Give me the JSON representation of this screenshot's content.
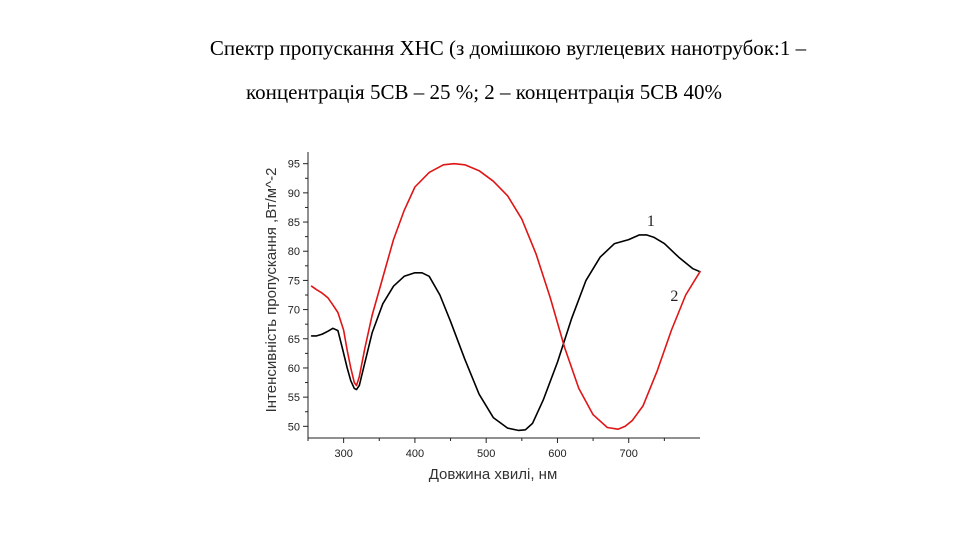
{
  "slide": {
    "title_line1": "Спектр пропускання ХНС (з домішкою вуглецевих нанотрубок:1 –",
    "title_line2": "концентрація 5СВ – 25 %; 2 – концентрація 5СВ 40%"
  },
  "chart_data": {
    "type": "line",
    "xlabel": "Довжина хвилі, нм",
    "ylabel": "Інтенсивність пропускання ,Вт/м^-2",
    "xlim": [
      250,
      800
    ],
    "ylim": [
      48,
      97
    ],
    "x_ticks": [
      300,
      400,
      500,
      600,
      700
    ],
    "y_ticks": [
      50,
      55,
      60,
      65,
      70,
      75,
      80,
      85,
      90,
      95
    ],
    "grid": false,
    "legend": "none",
    "series": [
      {
        "name": "1",
        "color": "#000000",
        "x": [
          255,
          262,
          270,
          278,
          285,
          292,
          298,
          305,
          310,
          315,
          318,
          322,
          330,
          340,
          355,
          370,
          385,
          400,
          410,
          420,
          435,
          450,
          470,
          490,
          510,
          530,
          545,
          555,
          565,
          580,
          600,
          620,
          640,
          660,
          680,
          700,
          715,
          725,
          735,
          750,
          770,
          790,
          800
        ],
        "y": [
          65.5,
          65.5,
          65.8,
          66.3,
          66.8,
          66.4,
          63.5,
          60.0,
          57.8,
          56.5,
          56.3,
          57.0,
          61.0,
          66.0,
          71.0,
          74.0,
          75.7,
          76.3,
          76.3,
          75.7,
          72.5,
          68.0,
          61.5,
          55.5,
          51.5,
          49.7,
          49.3,
          49.4,
          50.5,
          54.5,
          61.0,
          68.5,
          75.0,
          79.0,
          81.3,
          82.0,
          82.8,
          82.8,
          82.4,
          81.3,
          79.0,
          77.0,
          76.5
        ]
      },
      {
        "name": "2",
        "color": "#e01515",
        "x": [
          255,
          262,
          270,
          278,
          285,
          292,
          300,
          305,
          310,
          315,
          318,
          322,
          330,
          340,
          355,
          370,
          385,
          400,
          420,
          440,
          455,
          470,
          490,
          510,
          530,
          550,
          570,
          590,
          610,
          630,
          650,
          670,
          685,
          695,
          705,
          720,
          740,
          760,
          780,
          800
        ],
        "y": [
          74.0,
          73.4,
          72.8,
          72.0,
          70.8,
          69.5,
          66.5,
          63.0,
          60.0,
          57.5,
          57.0,
          58.5,
          63.5,
          69.0,
          75.5,
          82.0,
          87.0,
          91.0,
          93.5,
          94.8,
          95.0,
          94.8,
          93.8,
          92.0,
          89.5,
          85.5,
          79.5,
          72.0,
          63.5,
          56.5,
          52.0,
          49.8,
          49.5,
          50.0,
          51.0,
          53.5,
          59.5,
          66.5,
          72.5,
          76.5
        ]
      }
    ],
    "annotations": [
      {
        "text": "1",
        "x": 731,
        "y": 84.3
      },
      {
        "text": "2",
        "x": 764,
        "y": 71.5
      }
    ]
  }
}
